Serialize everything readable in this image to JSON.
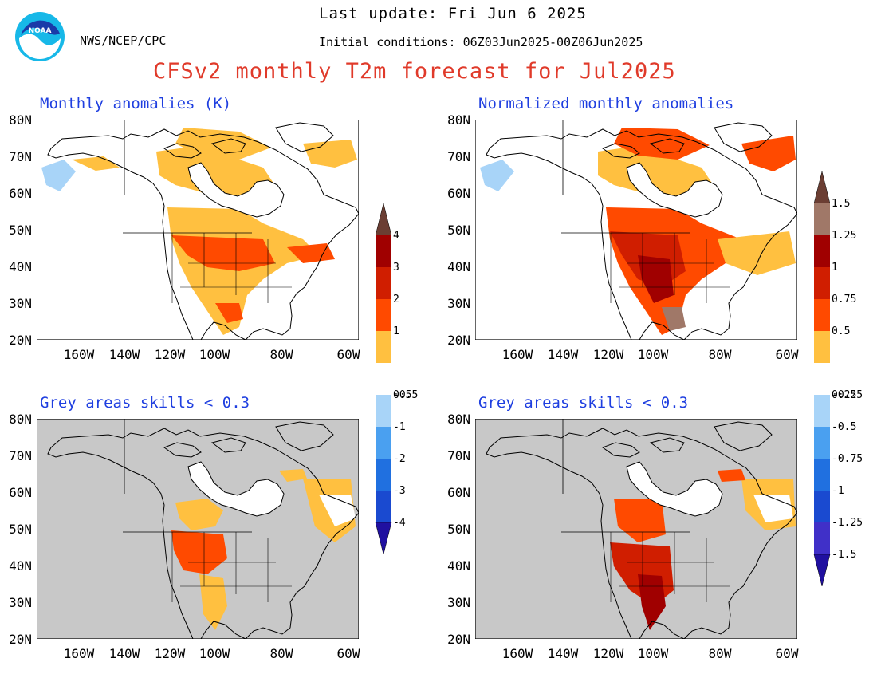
{
  "header": {
    "last_update": "Last update: Fri Jun 6 2025",
    "initial_conditions": "Initial conditions: 06Z03Jun2025-00Z06Jun2025",
    "org": "NWS/NCEP/CPC",
    "title": "CFSv2 monthly T2m forecast for Jul2025",
    "logo_text": "NOAA"
  },
  "panels": [
    {
      "id": "tl",
      "title": "Monthly anomalies (K)"
    },
    {
      "id": "tr",
      "title": "Normalized monthly anomalies"
    },
    {
      "id": "bl",
      "title": "Grey areas skills < 0.3"
    },
    {
      "id": "br",
      "title": "Grey areas skills < 0.3"
    }
  ],
  "axes": {
    "lat_labels": [
      "80N",
      "70N",
      "60N",
      "50N",
      "40N",
      "30N",
      "20N"
    ],
    "lon_labels": [
      "160W",
      "140W",
      "120W",
      "100W",
      "80W",
      "60W"
    ]
  },
  "colorbars": [
    {
      "id": "left",
      "labels": [
        "4",
        "3",
        "2",
        "1",
        "0.5",
        "-0.5",
        "-1",
        "-2",
        "-3",
        "-4"
      ]
    },
    {
      "id": "right",
      "labels": [
        "1.5",
        "1.25",
        "1",
        "0.75",
        "0.5",
        "0.25",
        "-0.25",
        "-0.5",
        "-0.75",
        "-1",
        "-1.25",
        "-1.5"
      ]
    }
  ],
  "colors": {
    "title_red": "#e03a2a",
    "panel_title_blue": "#1f3fe0",
    "grey_skill": "#c8c8c8",
    "warm": [
      "#ffc040",
      "#ff4a00",
      "#d01e00",
      "#a00000",
      "#a07868",
      "#6b3e33"
    ],
    "cool": [
      "#a8d4f8",
      "#4aa0f0",
      "#2070e0",
      "#1a4ad0",
      "#4030c8",
      "#2010a0"
    ]
  }
}
